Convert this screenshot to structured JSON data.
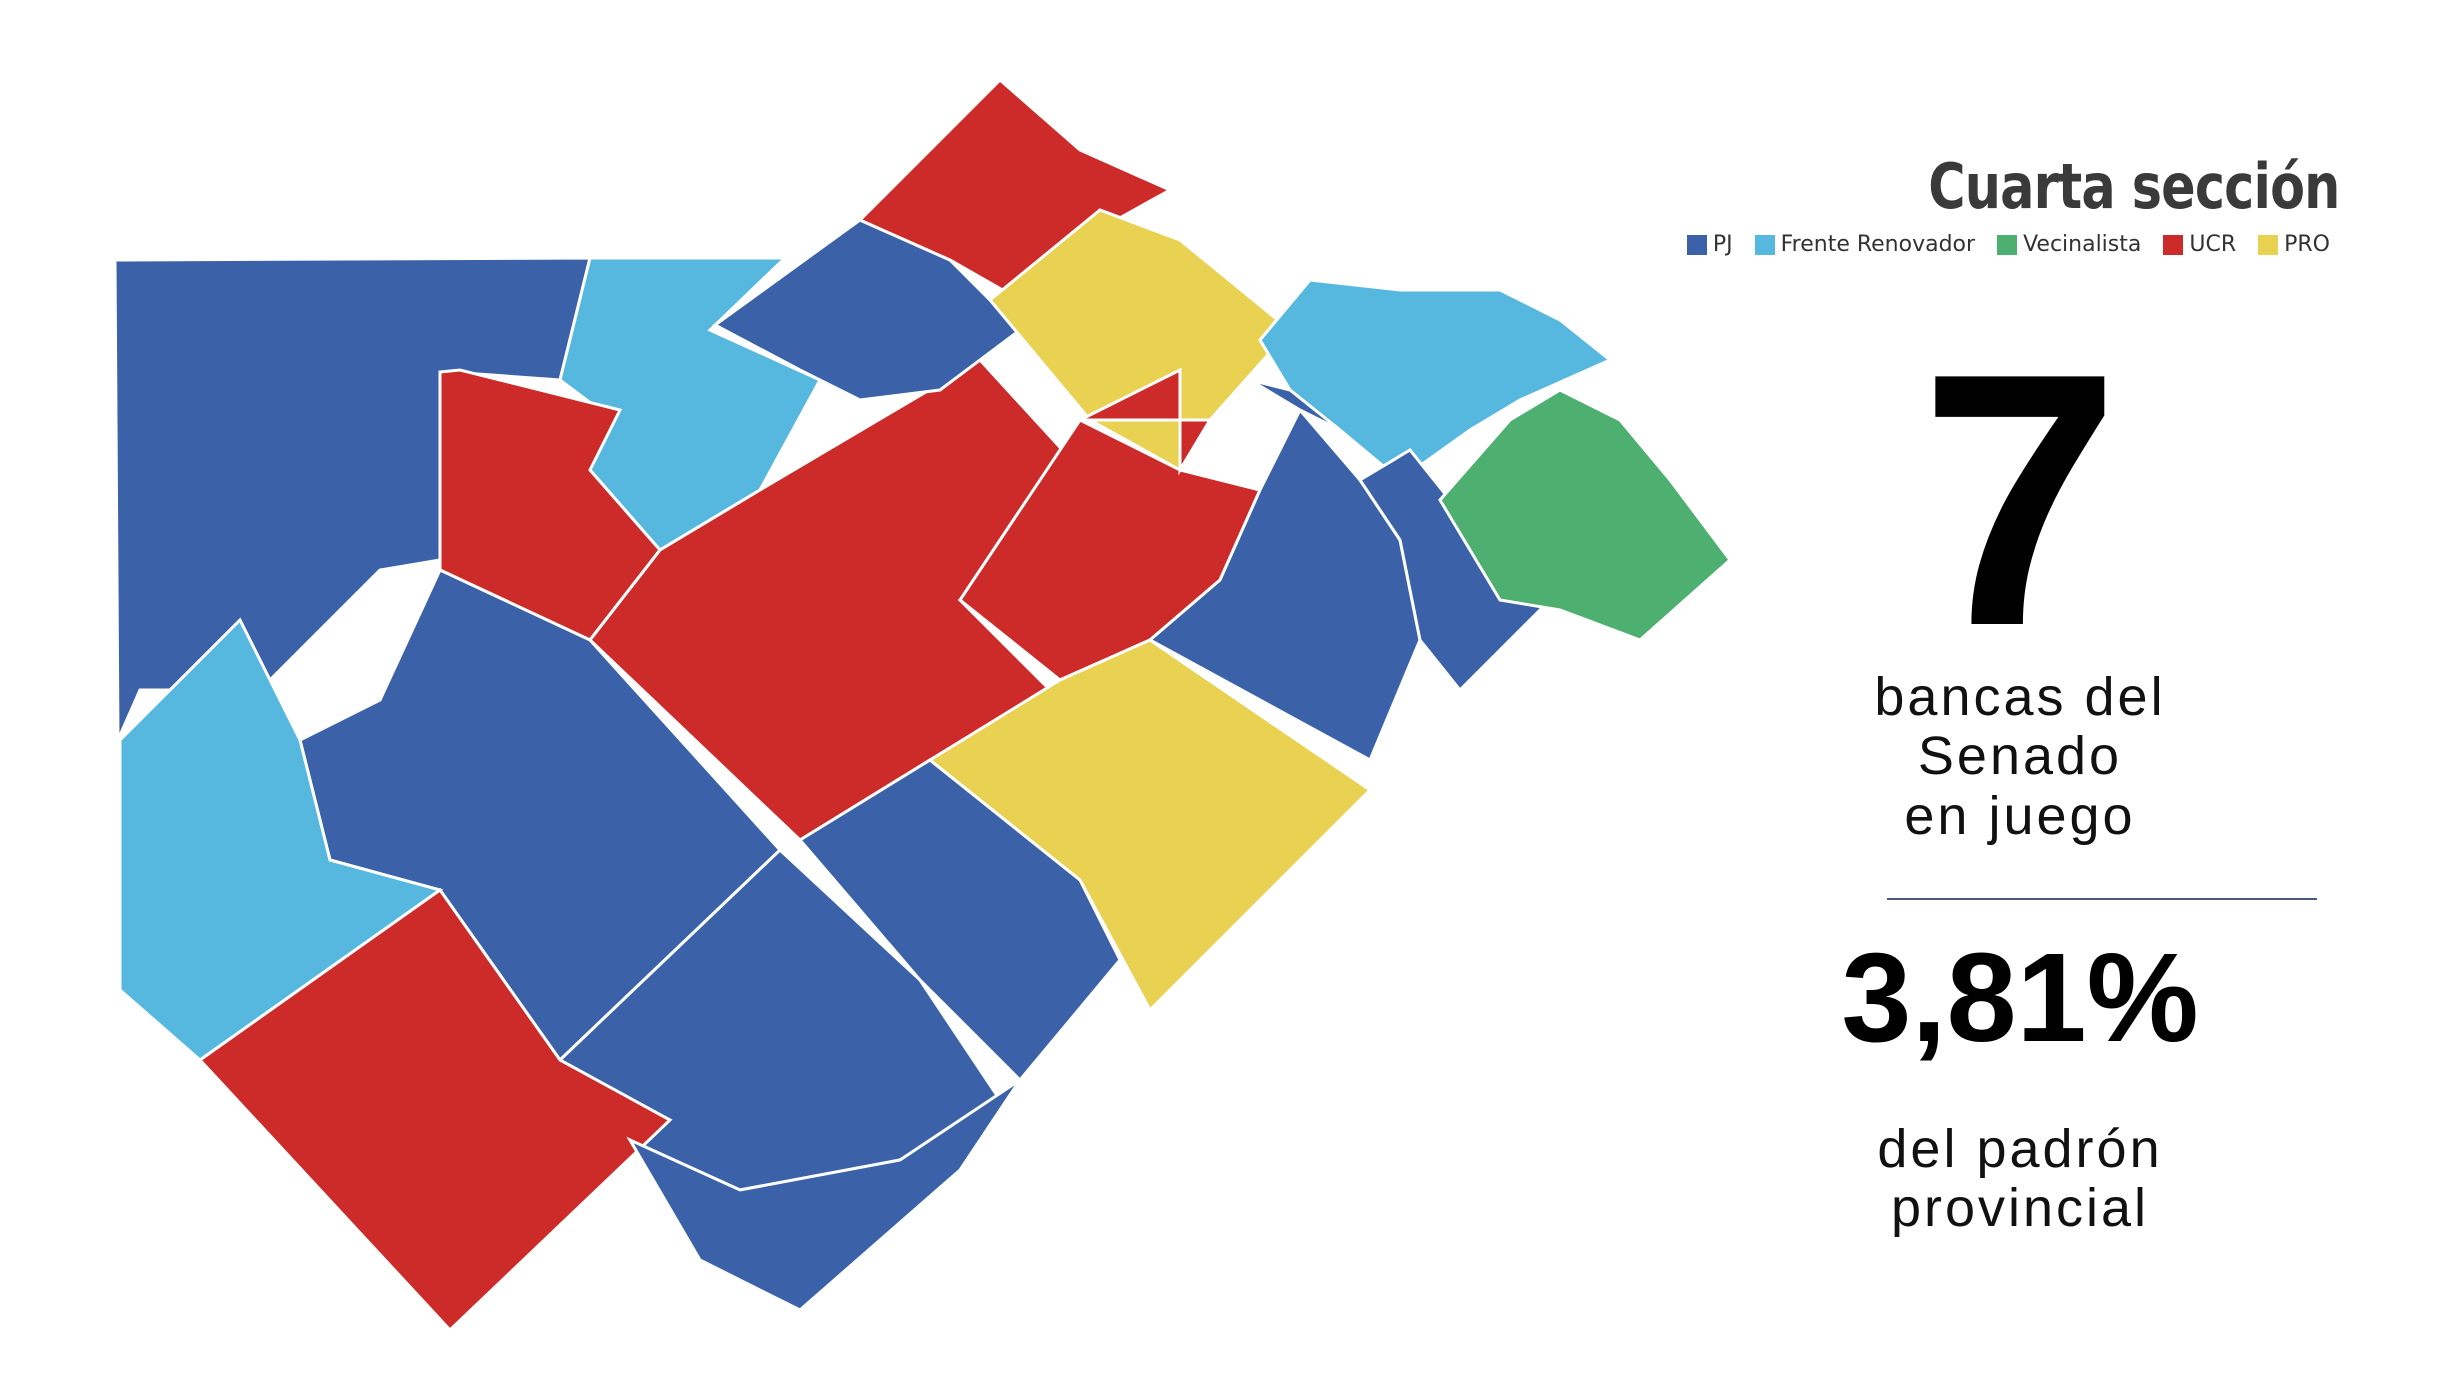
{
  "title": "Cuarta sección",
  "legend": [
    {
      "label": "PJ",
      "color": "#3b61a8"
    },
    {
      "label": "Frente Renovador",
      "color": "#56b8df"
    },
    {
      "label": "Vecinalista",
      "color": "#4daf70"
    },
    {
      "label": "UCR",
      "color": "#cc2b29"
    },
    {
      "label": "PRO",
      "color": "#e9d152"
    }
  ],
  "seats": {
    "number": "7",
    "caption_lines": [
      "bancas del",
      "Senado",
      "en juego"
    ]
  },
  "share": {
    "percent": "3,81%",
    "caption_lines": [
      "del padrón",
      "provincial"
    ]
  },
  "districts": [
    {
      "party": "PJ"
    },
    {
      "party": "Frente Renovador"
    },
    {
      "party": "UCR"
    },
    {
      "party": "PJ"
    },
    {
      "party": "UCR"
    },
    {
      "party": "Frente Renovador"
    },
    {
      "party": "PJ"
    },
    {
      "party": "UCR"
    },
    {
      "party": "PJ"
    },
    {
      "party": "UCR"
    },
    {
      "party": "PJ"
    },
    {
      "party": "PRO"
    },
    {
      "party": "UCR"
    },
    {
      "party": "PJ"
    },
    {
      "party": "PRO"
    },
    {
      "party": "PJ"
    },
    {
      "party": "UCR"
    },
    {
      "party": "Frente Renovador"
    },
    {
      "party": "PJ"
    },
    {
      "party": "PJ"
    },
    {
      "party": "Vecinalista"
    }
  ]
}
